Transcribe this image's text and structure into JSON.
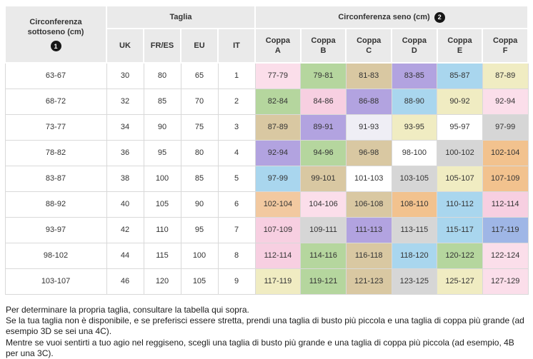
{
  "table": {
    "header": {
      "col1_title": "Circonferenza sottoseno (cm)",
      "col1_badge": "1",
      "taglia_title": "Taglia",
      "taglia_cols": [
        "UK",
        "FR/ES",
        "EU",
        "IT"
      ],
      "seno_title": "Circonferenza seno (cm)",
      "seno_badge": "2",
      "cup_cols": [
        "Coppa A",
        "Coppa B",
        "Coppa C",
        "Coppa D",
        "Coppa E",
        "Coppa F"
      ]
    },
    "rows": [
      {
        "sottoseno": "63-67",
        "uk": "30",
        "fr_es": "80",
        "eu": "65",
        "it": "1",
        "cups": [
          {
            "value": "77-79",
            "color": "#fbdeea"
          },
          {
            "value": "79-81",
            "color": "#b5d69e"
          },
          {
            "value": "81-83",
            "color": "#d9c8a2"
          },
          {
            "value": "83-85",
            "color": "#b2a3e0"
          },
          {
            "value": "85-87",
            "color": "#a9d6ee"
          },
          {
            "value": "87-89",
            "color": "#f0ecc2"
          }
        ]
      },
      {
        "sottoseno": "68-72",
        "uk": "32",
        "fr_es": "85",
        "eu": "70",
        "it": "2",
        "cups": [
          {
            "value": "82-84",
            "color": "#b5d69e"
          },
          {
            "value": "84-86",
            "color": "#f7cfe1"
          },
          {
            "value": "86-88",
            "color": "#b2a3e0"
          },
          {
            "value": "88-90",
            "color": "#a9d6ee"
          },
          {
            "value": "90-92",
            "color": "#f0ecc2"
          },
          {
            "value": "92-94",
            "color": "#fbdeea"
          }
        ]
      },
      {
        "sottoseno": "73-77",
        "uk": "34",
        "fr_es": "90",
        "eu": "75",
        "it": "3",
        "cups": [
          {
            "value": "87-89",
            "color": "#d9c8a2"
          },
          {
            "value": "89-91",
            "color": "#b2a3e0"
          },
          {
            "value": "91-93",
            "color": "#efeef5"
          },
          {
            "value": "93-95",
            "color": "#f0ecc2"
          },
          {
            "value": "95-97",
            "color": "#ffffff"
          },
          {
            "value": "97-99",
            "color": "#d6d6d6"
          }
        ]
      },
      {
        "sottoseno": "78-82",
        "uk": "36",
        "fr_es": "95",
        "eu": "80",
        "it": "4",
        "cups": [
          {
            "value": "92-94",
            "color": "#b2a3e0"
          },
          {
            "value": "94-96",
            "color": "#b5d69e"
          },
          {
            "value": "96-98",
            "color": "#d9c8a2"
          },
          {
            "value": "98-100",
            "color": "#ffffff"
          },
          {
            "value": "100-102",
            "color": "#d6d6d6"
          },
          {
            "value": "102-104",
            "color": "#f2c28e"
          }
        ]
      },
      {
        "sottoseno": "83-87",
        "uk": "38",
        "fr_es": "100",
        "eu": "85",
        "it": "5",
        "cups": [
          {
            "value": "97-99",
            "color": "#a9d6ee"
          },
          {
            "value": "99-101",
            "color": "#d9c8a2"
          },
          {
            "value": "101-103",
            "color": "#ffffff"
          },
          {
            "value": "103-105",
            "color": "#d6d6d6"
          },
          {
            "value": "105-107",
            "color": "#f0ecc2"
          },
          {
            "value": "107-109",
            "color": "#f2c28e"
          }
        ]
      },
      {
        "sottoseno": "88-92",
        "uk": "40",
        "fr_es": "105",
        "eu": "90",
        "it": "6",
        "cups": [
          {
            "value": "102-104",
            "color": "#f2c9a0"
          },
          {
            "value": "104-106",
            "color": "#fbdeea"
          },
          {
            "value": "106-108",
            "color": "#d9c8a2"
          },
          {
            "value": "108-110",
            "color": "#f2c28e"
          },
          {
            "value": "110-112",
            "color": "#a9d6ee"
          },
          {
            "value": "112-114",
            "color": "#f7cfe1"
          }
        ]
      },
      {
        "sottoseno": "93-97",
        "uk": "42",
        "fr_es": "110",
        "eu": "95",
        "it": "7",
        "cups": [
          {
            "value": "107-109",
            "color": "#f7cfe1"
          },
          {
            "value": "109-111",
            "color": "#d6d6d6"
          },
          {
            "value": "111-113",
            "color": "#b2a3e0"
          },
          {
            "value": "113-115",
            "color": "#d6d6d6"
          },
          {
            "value": "115-117",
            "color": "#a9d6ee"
          },
          {
            "value": "117-119",
            "color": "#9fb6e6"
          }
        ]
      },
      {
        "sottoseno": "98-102",
        "uk": "44",
        "fr_es": "115",
        "eu": "100",
        "it": "8",
        "cups": [
          {
            "value": "112-114",
            "color": "#f7cfe1"
          },
          {
            "value": "114-116",
            "color": "#b5d69e"
          },
          {
            "value": "116-118",
            "color": "#d9c8a2"
          },
          {
            "value": "118-120",
            "color": "#a9d6ee"
          },
          {
            "value": "120-122",
            "color": "#b5d69e"
          },
          {
            "value": "122-124",
            "color": "#fbdeea"
          }
        ]
      },
      {
        "sottoseno": "103-107",
        "uk": "46",
        "fr_es": "120",
        "eu": "105",
        "it": "9",
        "cups": [
          {
            "value": "117-119",
            "color": "#f0ecc2"
          },
          {
            "value": "119-121",
            "color": "#b5d69e"
          },
          {
            "value": "121-123",
            "color": "#d9c8a2"
          },
          {
            "value": "123-125",
            "color": "#d6d6d6"
          },
          {
            "value": "125-127",
            "color": "#f0ecc2"
          },
          {
            "value": "127-129",
            "color": "#fbdeea"
          }
        ]
      }
    ]
  },
  "footer": {
    "lines": [
      "Per determinare la propria taglia, consultare la tabella qui sopra.",
      "Se la tua taglia non è disponibile, e se preferisci essere stretta, prendi una taglia di busto più piccola e una taglia di coppa più grande (ad esempio 3D se sei una 4C).",
      "Mentre se vuoi sentirti a tuo agio nel reggiseno, scegli una taglia di busto più grande e una taglia di coppa più piccola (ad esempio, 4B per una 3C)."
    ]
  }
}
